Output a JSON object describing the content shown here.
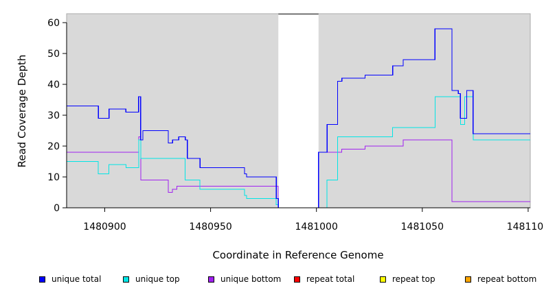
{
  "chart_data": {
    "type": "line",
    "xlabel": "Coordinate in Reference Genome",
    "ylabel": "Read Coverage Depth",
    "xlim": [
      1480882,
      1481101
    ],
    "ylim": [
      0,
      60
    ],
    "x_ticks": [
      1480900,
      1480950,
      1481000,
      1481050,
      1481100
    ],
    "x_tick_labels": [
      "1480900",
      "1480950",
      "1481000",
      "1481050",
      "1481100"
    ],
    "y_ticks": [
      0,
      10,
      20,
      30,
      40,
      50,
      60
    ],
    "y_tick_labels": [
      "0",
      "10",
      "20",
      "30",
      "40",
      "50",
      "60"
    ],
    "gap_region": [
      1480982,
      1481001
    ],
    "background_color": "#d9d9d9",
    "legend_position": "bottom",
    "series": [
      {
        "name": "unique total",
        "color": "#0000ff",
        "x": [
          1480882,
          1480897,
          1480902,
          1480910,
          1480916,
          1480917,
          1480918,
          1480930,
          1480932,
          1480935,
          1480938,
          1480939,
          1480945,
          1480966,
          1480967,
          1480981,
          1480982,
          1481000,
          1481001,
          1481005,
          1481010,
          1481012,
          1481023,
          1481036,
          1481041,
          1481056,
          1481064,
          1481067,
          1481068,
          1481071,
          1481074,
          1481101
        ],
        "y": [
          33,
          29,
          32,
          31,
          36,
          22,
          25,
          21,
          22,
          23,
          22,
          16,
          13,
          11,
          10,
          3,
          0,
          0,
          18,
          27,
          41,
          42,
          43,
          46,
          48,
          58,
          38,
          37,
          29,
          38,
          24,
          24
        ]
      },
      {
        "name": "unique top",
        "color": "#00e5e5",
        "x": [
          1480882,
          1480897,
          1480902,
          1480910,
          1480916,
          1480917,
          1480918,
          1480938,
          1480939,
          1480945,
          1480966,
          1480967,
          1480981,
          1480982,
          1481004,
          1481005,
          1481010,
          1481036,
          1481056,
          1481068,
          1481070,
          1481074,
          1481101
        ],
        "y": [
          15,
          11,
          14,
          13,
          22,
          16,
          16,
          9,
          9,
          6,
          4,
          3,
          1,
          0,
          0,
          9,
          23,
          26,
          36,
          27,
          36,
          22,
          22
        ]
      },
      {
        "name": "unique bottom",
        "color": "#a020f0",
        "x": [
          1480882,
          1480916,
          1480917,
          1480918,
          1480930,
          1480932,
          1480934,
          1480981,
          1480982,
          1481000,
          1481001,
          1481012,
          1481023,
          1481041,
          1481064,
          1481101
        ],
        "y": [
          18,
          23,
          9,
          9,
          5,
          6,
          7,
          7,
          0,
          0,
          18,
          19,
          20,
          22,
          2,
          2
        ]
      },
      {
        "name": "repeat total",
        "color": "#ff0000",
        "x": [
          1480882,
          1481101
        ],
        "y": [
          0,
          0
        ]
      },
      {
        "name": "repeat top",
        "color": "#ffff00",
        "x": [
          1480882,
          1481101
        ],
        "y": [
          0,
          0
        ]
      },
      {
        "name": "repeat bottom",
        "color": "#ffa500",
        "x": [
          1480882,
          1481101
        ],
        "y": [
          0,
          0
        ]
      }
    ]
  }
}
